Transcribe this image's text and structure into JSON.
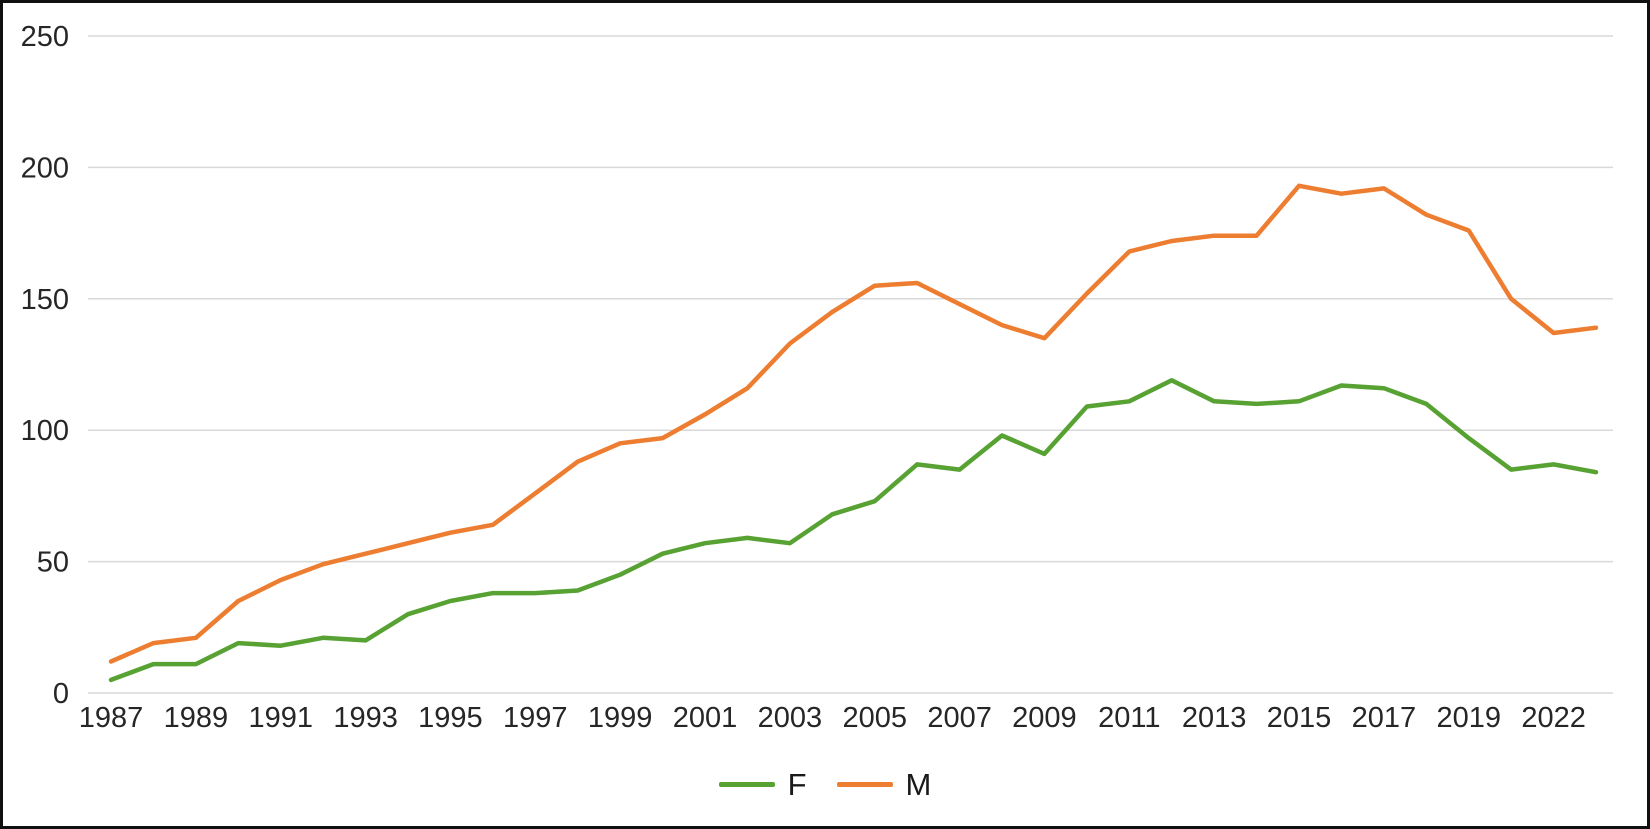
{
  "chart_data": {
    "type": "line",
    "title": "",
    "xlabel": "",
    "ylabel": "",
    "categories": [
      "1987",
      "1988",
      "1989",
      "1990",
      "1991",
      "1992",
      "1993",
      "1994",
      "1995",
      "1996",
      "1997",
      "1998",
      "1999",
      "2000",
      "2001",
      "2002",
      "2003",
      "2004",
      "2005",
      "2006",
      "2007",
      "2008",
      "2009",
      "2010",
      "2011",
      "2012",
      "2013",
      "2014",
      "2015",
      "2016",
      "2017",
      "2018",
      "2019",
      "2020",
      "2022",
      "2023"
    ],
    "series": [
      {
        "name": "F",
        "color": "#57A233",
        "values": [
          5,
          11,
          11,
          19,
          18,
          21,
          20,
          30,
          35,
          38,
          38,
          39,
          45,
          53,
          57,
          59,
          57,
          68,
          73,
          87,
          85,
          98,
          91,
          109,
          111,
          119,
          111,
          110,
          111,
          117,
          116,
          110,
          97,
          85,
          87,
          84
        ]
      },
      {
        "name": "M",
        "color": "#ED7D31",
        "values": [
          12,
          19,
          21,
          35,
          43,
          49,
          53,
          57,
          61,
          64,
          76,
          88,
          95,
          97,
          106,
          116,
          133,
          145,
          155,
          156,
          148,
          140,
          135,
          152,
          168,
          172,
          174,
          174,
          193,
          190,
          192,
          182,
          176,
          150,
          137,
          139
        ]
      }
    ],
    "ylim": [
      0,
      250
    ],
    "yticks": [
      0,
      50,
      100,
      150,
      200,
      250
    ],
    "xticks_every": 2,
    "xtick_labels": [
      "1987",
      "1989",
      "1991",
      "1993",
      "1995",
      "1997",
      "1999",
      "2001",
      "2003",
      "2005",
      "2007",
      "2009",
      "2011",
      "2013",
      "2015",
      "2017",
      "2019",
      "2022"
    ],
    "grid": "horizontal",
    "gridline_color": "#D9D9D9",
    "tick_label_color": "#262626",
    "legend_position": "bottom-center",
    "legend": [
      {
        "label": "F",
        "color": "#57A233"
      },
      {
        "label": "M",
        "color": "#ED7D31"
      }
    ]
  }
}
